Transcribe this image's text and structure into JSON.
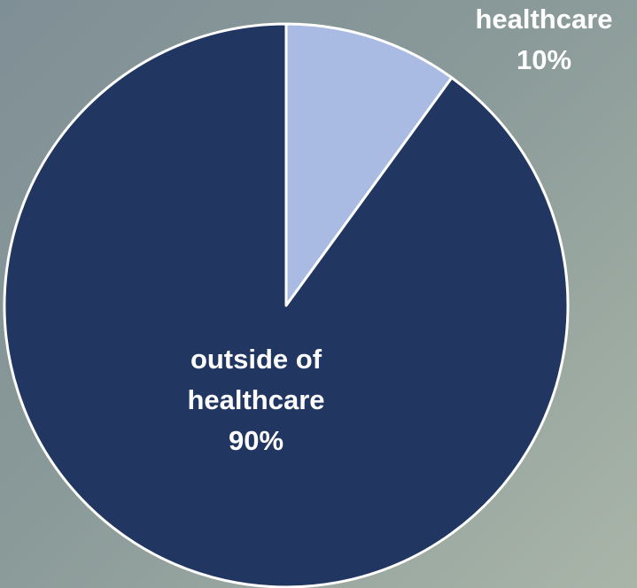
{
  "chart_data": {
    "type": "pie",
    "title": "",
    "slices": [
      {
        "label_lines": [
          "healthcare",
          "10%"
        ],
        "value": 10,
        "color": "#a9bbe2"
      },
      {
        "label_lines": [
          "outside of",
          "healthcare",
          "90%"
        ],
        "value": 90,
        "color": "#213761"
      }
    ],
    "start_angle_deg": 0,
    "direction": "clockwise",
    "legend": "none"
  }
}
